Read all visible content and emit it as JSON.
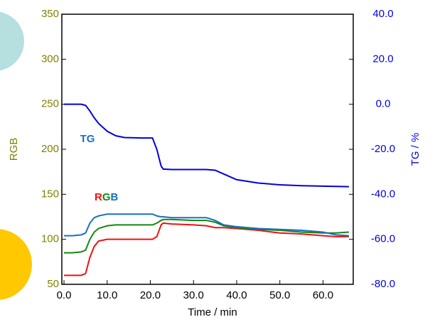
{
  "chart_data": {
    "type": "line",
    "xlabel": "Time / min",
    "ylabel": "RGB",
    "y2label": "TG / %",
    "x": [
      0,
      2,
      4,
      5,
      6,
      7,
      8,
      10,
      12,
      14,
      18,
      20.5,
      21.5,
      22.5,
      23,
      25,
      30,
      33,
      35,
      37,
      40,
      45,
      50,
      55,
      60,
      63,
      66
    ],
    "series": [
      {
        "name": "TG",
        "color": "#0000dd",
        "label_color": "#1a6fc4",
        "axis": "y2",
        "values": [
          0,
          0,
          0,
          -0.5,
          -3,
          -6,
          -8.5,
          -12,
          -14,
          -14.8,
          -15,
          -15,
          -20,
          -27.5,
          -28.8,
          -29,
          -29,
          -29,
          -29.3,
          -31,
          -33.5,
          -35,
          -35.8,
          -36.2,
          -36.4,
          -36.5,
          -36.6
        ]
      },
      {
        "name": "R",
        "color": "#ee1111",
        "values": [
          60,
          60,
          60,
          62,
          80,
          92,
          98,
          100,
          100,
          100,
          100,
          100,
          103,
          116,
          118,
          117,
          116,
          115,
          113,
          113,
          112,
          110,
          107,
          106,
          104,
          103,
          103
        ]
      },
      {
        "name": "G",
        "color": "#118811",
        "values": [
          85,
          85,
          86,
          88,
          100,
          108,
          112,
          115,
          116,
          116,
          116,
          116,
          118,
          121,
          122,
          122,
          121,
          121,
          119,
          115,
          113,
          111,
          110,
          108,
          107,
          107,
          108
        ]
      },
      {
        "name": "B",
        "color": "#1a6fc4",
        "values": [
          104,
          104,
          105,
          107,
          118,
          124,
          126,
          128,
          128,
          128,
          128,
          128,
          126,
          125,
          125,
          124,
          124,
          124,
          121,
          116,
          114,
          112,
          111,
          110,
          108,
          105,
          104
        ]
      }
    ],
    "xlim": [
      -0.5,
      67
    ],
    "xticks": [
      {
        "value": 0,
        "label": "0.0"
      },
      {
        "value": 10,
        "label": "10.0"
      },
      {
        "value": 20,
        "label": "20.0"
      },
      {
        "value": 30,
        "label": "30.0"
      },
      {
        "value": 40,
        "label": "40.0"
      },
      {
        "value": 50,
        "label": "50.0"
      },
      {
        "value": 60,
        "label": "60.0"
      }
    ],
    "ylim": [
      50,
      350
    ],
    "yticks": [
      50,
      100,
      150,
      200,
      250,
      300,
      350
    ],
    "y_color": "#808000",
    "y2lim": [
      -80,
      40
    ],
    "y2ticks": [
      {
        "value": -80,
        "label": "-80.0"
      },
      {
        "value": -60,
        "label": "-60.0"
      },
      {
        "value": -40,
        "label": "-40.0"
      },
      {
        "value": -20,
        "label": "-20.0"
      },
      {
        "value": 0,
        "label": "0.0"
      },
      {
        "value": 20,
        "label": "20.0"
      },
      {
        "value": 40,
        "label": "40.0"
      }
    ],
    "y2_color": "#0000dd"
  }
}
